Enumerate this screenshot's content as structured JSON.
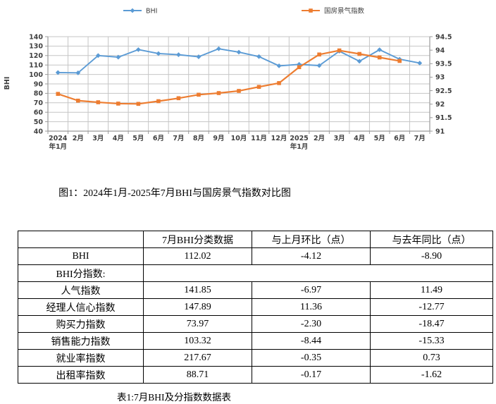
{
  "figure_caption": "图1：2024年1月-2025年7月BHI与国房景气指数对比图",
  "table_caption": "表1:7月BHI及分指数数据表",
  "colors": {
    "bhi_series": "#5B9BD5",
    "gfjq_series": "#ED7D31",
    "gridline": "#C6C6C6",
    "axis_line": "#9B9B9B",
    "tick_text": "#3F3F3F"
  },
  "chart_data": {
    "type": "line",
    "title": "",
    "xlabel": "",
    "ylabel": "BHI",
    "grid": true,
    "legend_position": "top",
    "categories": [
      "2024年1月",
      "2月",
      "3月",
      "4月",
      "5月",
      "6月",
      "7月",
      "8月",
      "9月",
      "10月",
      "11月",
      "12月",
      "2025年1月",
      "2月",
      "3月",
      "4月",
      "5月",
      "6月",
      "7月"
    ],
    "x_tick_lines": [
      [
        "2024",
        "年1月"
      ],
      [
        "2月"
      ],
      [
        "3月"
      ],
      [
        "4月"
      ],
      [
        "5月"
      ],
      [
        "6月"
      ],
      [
        "7月"
      ],
      [
        "8月"
      ],
      [
        "9月"
      ],
      [
        "10月"
      ],
      [
        "11月"
      ],
      [
        "12月"
      ],
      [
        "2025",
        "年1月"
      ],
      [
        "2月"
      ],
      [
        "3月"
      ],
      [
        "4月"
      ],
      [
        "5月"
      ],
      [
        "6月"
      ],
      [
        "7月"
      ]
    ],
    "left_axis": {
      "label": "BHI",
      "min": 40,
      "max": 140,
      "step": 10
    },
    "right_axis": {
      "min": 91,
      "max": 94.5,
      "step": 0.5
    },
    "series": [
      {
        "name": "BHI",
        "axis": "left",
        "marker": "diamond",
        "color": "#5B9BD5",
        "values": [
          102,
          101.7,
          120,
          118.3,
          126.3,
          122.1,
          120.92,
          118.7,
          127.2,
          123.6,
          118.9,
          109.1,
          110.7,
          109.4,
          124.6,
          114,
          126.2,
          116.14,
          112.02
        ]
      },
      {
        "name": "国房景气指数",
        "axis": "right",
        "marker": "square",
        "color": "#ED7D31",
        "values": [
          92.38,
          92.13,
          92.07,
          92.02,
          92.01,
          92.11,
          92.22,
          92.35,
          92.41,
          92.49,
          92.64,
          92.78,
          93.37,
          93.84,
          93.99,
          93.86,
          93.73,
          93.6,
          null
        ]
      }
    ]
  },
  "table": {
    "headers": [
      "",
      "7月BHI分类数据",
      "与上月环比（点）",
      "与去年同比（点）"
    ],
    "rows": [
      {
        "label": "BHI",
        "values": [
          "112.02",
          "-4.12",
          "-8.90"
        ]
      },
      {
        "label": "BHI分指数:",
        "section": true,
        "values": []
      },
      {
        "label": "人气指数",
        "values": [
          "141.85",
          "-6.97",
          "11.49"
        ]
      },
      {
        "label": "经理人信心指数",
        "values": [
          "147.89",
          "11.36",
          "-12.77"
        ]
      },
      {
        "label": "购买力指数",
        "values": [
          "73.97",
          "-2.30",
          "-18.47"
        ]
      },
      {
        "label": "销售能力指数",
        "values": [
          "103.32",
          "-8.44",
          "-15.33"
        ]
      },
      {
        "label": "就业率指数",
        "values": [
          "217.67",
          "-0.35",
          "0.73"
        ]
      },
      {
        "label": "出租率指数",
        "values": [
          "88.71",
          "-0.17",
          "-1.62"
        ]
      }
    ]
  }
}
